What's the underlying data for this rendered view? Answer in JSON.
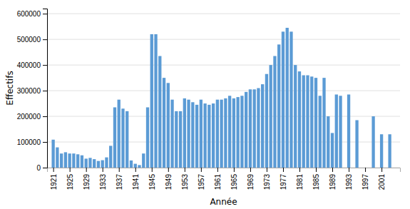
{
  "chart_data": {
    "type": "bar",
    "x": [
      1921,
      1922,
      1923,
      1924,
      1925,
      1926,
      1927,
      1928,
      1929,
      1930,
      1931,
      1932,
      1933,
      1934,
      1935,
      1936,
      1937,
      1938,
      1939,
      1940,
      1941,
      1942,
      1943,
      1944,
      1945,
      1946,
      1947,
      1948,
      1949,
      1950,
      1951,
      1952,
      1953,
      1954,
      1955,
      1956,
      1957,
      1958,
      1959,
      1960,
      1961,
      1962,
      1963,
      1964,
      1965,
      1966,
      1967,
      1968,
      1969,
      1970,
      1971,
      1972,
      1973,
      1974,
      1975,
      1976,
      1977,
      1978,
      1979,
      1980,
      1981,
      1982,
      1983,
      1984,
      1985,
      1986,
      1987,
      1988,
      1989,
      1990,
      1991,
      1992,
      1993,
      1994,
      1995,
      1996,
      1997,
      1998,
      1999,
      2000,
      2001,
      2002,
      2003,
      2004
    ],
    "values": [
      109000,
      79000,
      55000,
      60000,
      55000,
      55000,
      52000,
      48000,
      35000,
      38000,
      33000,
      26000,
      29000,
      40000,
      85000,
      235000,
      265000,
      230000,
      220000,
      28000,
      15000,
      10000,
      55000,
      235000,
      520000,
      520000,
      435000,
      350000,
      330000,
      265000,
      220000,
      220000,
      270000,
      265000,
      255000,
      245000,
      265000,
      250000,
      245000,
      250000,
      265000,
      265000,
      270000,
      280000,
      270000,
      275000,
      280000,
      295000,
      305000,
      305000,
      310000,
      325000,
      365000,
      400000,
      435000,
      480000,
      530000,
      545000,
      530000,
      400000,
      375000,
      360000,
      360000,
      355000,
      350000,
      280000,
      350000,
      200000,
      135000,
      285000,
      280000,
      0,
      285000,
      0,
      185000,
      0,
      0,
      0,
      200000,
      0,
      130000,
      0,
      130000,
      0
    ],
    "color": "#5b9bd5",
    "xlabel": "Année",
    "ylabel": "Effectifs",
    "xlim": [
      1919.5,
      2005.5
    ],
    "ylim": [
      0,
      620000
    ],
    "xticks": [
      1921,
      1925,
      1929,
      1933,
      1937,
      1941,
      1945,
      1949,
      1953,
      1957,
      1961,
      1965,
      1969,
      1973,
      1977,
      1981,
      1985,
      1989,
      1993,
      1997,
      2001
    ],
    "yticks": [
      0,
      100000,
      200000,
      300000,
      400000,
      500000,
      600000
    ],
    "grid": true
  }
}
